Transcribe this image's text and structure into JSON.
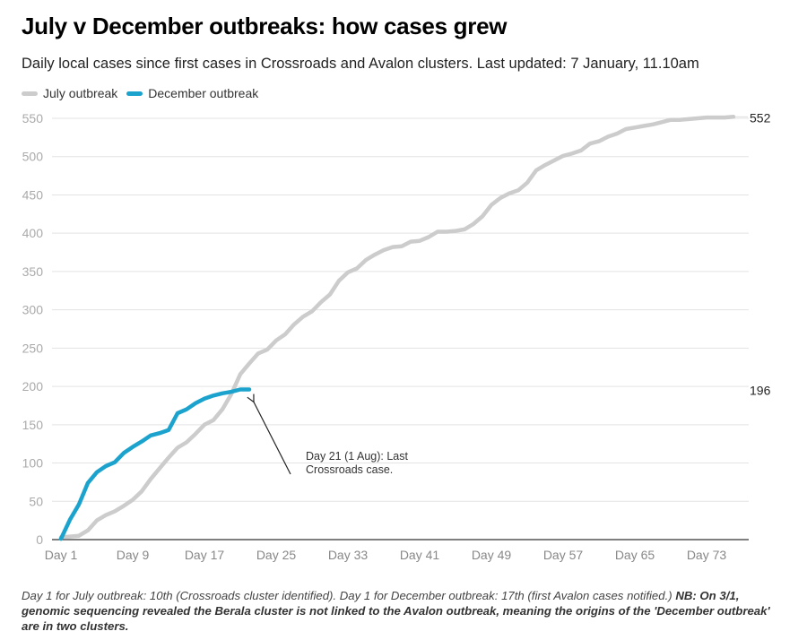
{
  "chart_data": {
    "type": "line",
    "title": "July v December outbreaks: how cases grew",
    "subtitle": "Daily local cases since first cases in Crossroads and Avalon clusters. Last updated: 7 January, 11.10am",
    "xlabel": "",
    "ylabel": "",
    "ylim": [
      0,
      550
    ],
    "xlim": [
      1,
      77
    ],
    "grid": true,
    "legend_position": "top-left",
    "y_ticks": [
      0,
      50,
      100,
      150,
      200,
      250,
      300,
      350,
      400,
      450,
      500,
      550
    ],
    "x_ticks": [
      1,
      9,
      17,
      25,
      33,
      41,
      49,
      57,
      65,
      73
    ],
    "x_tick_labels": [
      "Day 1",
      "Day 9",
      "Day 17",
      "Day 25",
      "Day 33",
      "Day 41",
      "Day 49",
      "Day 57",
      "Day 65",
      "Day 73"
    ],
    "series": [
      {
        "name": "July outbreak",
        "color": "#cccccc",
        "start_day": 1,
        "end_label": "552",
        "values": [
          3,
          4,
          5,
          12,
          25,
          32,
          37,
          44,
          52,
          63,
          79,
          93,
          107,
          120,
          127,
          138,
          150,
          156,
          170,
          190,
          216,
          230,
          243,
          248,
          260,
          268,
          281,
          291,
          298,
          310,
          320,
          338,
          349,
          354,
          365,
          372,
          378,
          382,
          383,
          389,
          390,
          395,
          402,
          402,
          403,
          405,
          412,
          422,
          437,
          446,
          452,
          456,
          466,
          482,
          489,
          495,
          501,
          504,
          508,
          517,
          520,
          526,
          530,
          536,
          538,
          540,
          542,
          545,
          548,
          548,
          549,
          550,
          551,
          551,
          551,
          552
        ]
      },
      {
        "name": "December outbreak",
        "color": "#1ba3cd",
        "start_day": 1,
        "end_label": "196",
        "values": [
          1,
          26,
          46,
          74,
          88,
          96,
          101,
          113,
          121,
          128,
          136,
          139,
          143,
          165,
          170,
          178,
          184,
          188,
          191,
          193,
          196,
          196
        ]
      }
    ],
    "annotation": {
      "line1": "Day 21 (1 Aug): Last",
      "line2": "Crossroads case.",
      "target_day": 22,
      "target_value": 196
    }
  },
  "footnote": {
    "normal": "Day 1 for July outbreak: 10th (Crossroads cluster identified). Day 1 for December outbreak: 17th (first Avalon cases notified.) ",
    "bold": "NB: On 3/1, genomic sequencing revealed the Berala cluster is not linked to the Avalon outbreak, meaning the origins of the 'December outbreak' are in two clusters."
  }
}
